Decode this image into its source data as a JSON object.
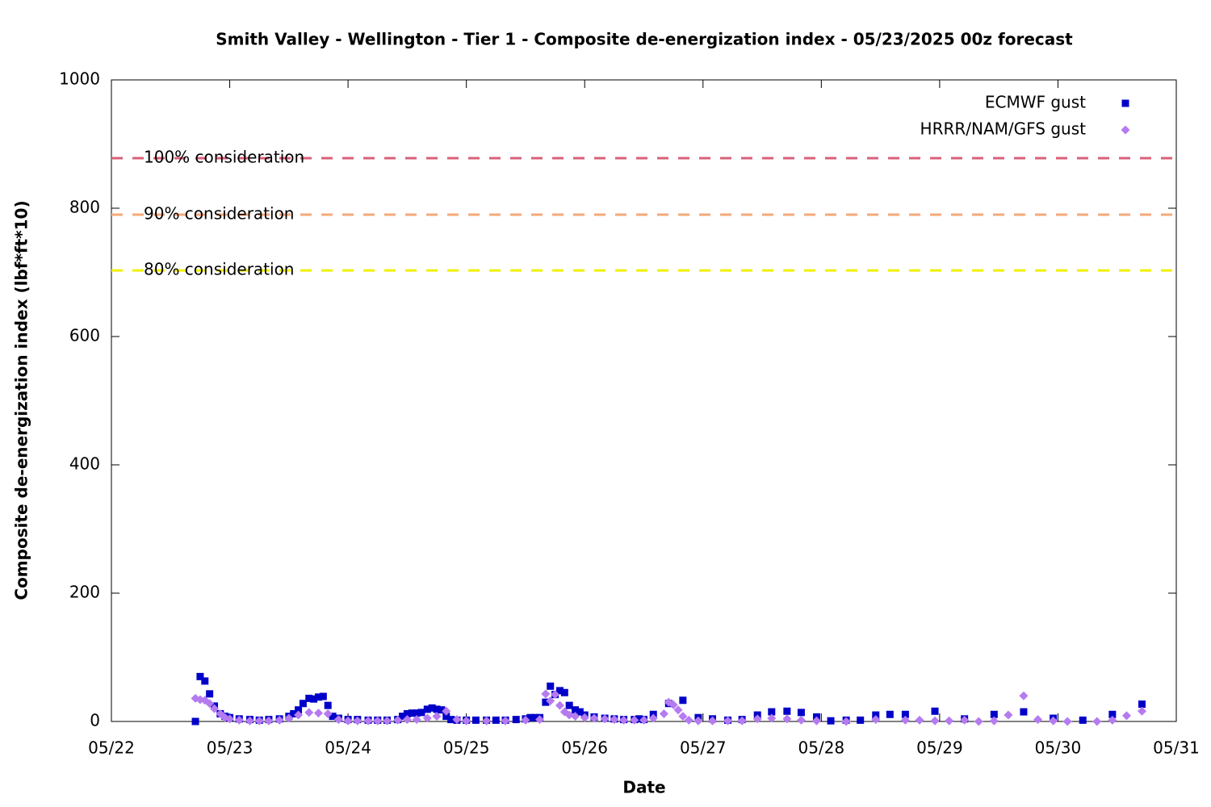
{
  "chart_data": {
    "type": "scatter",
    "title": "Smith Valley - Wellington - Tier 1 - Composite de-energization index - 05/23/2025 00z forecast",
    "x_label": "Date",
    "y_label": "Composite de-energization index (lbf*ft*10)",
    "xlim": [
      22,
      31
    ],
    "xticks": [
      {
        "value": 22,
        "label": "05/22"
      },
      {
        "value": 23,
        "label": "05/23"
      },
      {
        "value": 24,
        "label": "05/24"
      },
      {
        "value": 25,
        "label": "05/25"
      },
      {
        "value": 26,
        "label": "05/26"
      },
      {
        "value": 27,
        "label": "05/27"
      },
      {
        "value": 28,
        "label": "05/28"
      },
      {
        "value": 29,
        "label": "05/29"
      },
      {
        "value": 30,
        "label": "05/30"
      },
      {
        "value": 31,
        "label": "05/31"
      }
    ],
    "ylim": [
      0,
      1000
    ],
    "yticks": [
      0,
      200,
      400,
      600,
      800,
      1000
    ],
    "legend": "top-right",
    "thresholds": [
      {
        "label": "100% consideration",
        "value": 878,
        "color": "#d9607a"
      },
      {
        "label": "90% consideration",
        "value": 790,
        "color": "#f4a97a"
      },
      {
        "label": "80% consideration",
        "value": 703,
        "color": "#f0f000"
      }
    ],
    "series": [
      {
        "name": "ECMWF gust",
        "color": "#0000c8",
        "marker": "square",
        "x": [
          22.71,
          22.75,
          22.79,
          22.83,
          22.87,
          22.92,
          22.96,
          23.0,
          23.08,
          23.17,
          23.25,
          23.33,
          23.42,
          23.5,
          23.54,
          23.58,
          23.62,
          23.67,
          23.71,
          23.75,
          23.79,
          23.83,
          23.87,
          23.92,
          24.0,
          24.08,
          24.17,
          24.25,
          24.33,
          24.42,
          24.46,
          24.5,
          24.54,
          24.58,
          24.62,
          24.67,
          24.71,
          24.75,
          24.79,
          24.83,
          24.87,
          24.92,
          25.0,
          25.08,
          25.17,
          25.25,
          25.33,
          25.42,
          25.5,
          25.54,
          25.58,
          25.62,
          25.67,
          25.71,
          25.75,
          25.79,
          25.83,
          25.87,
          25.92,
          25.96,
          26.0,
          26.08,
          26.17,
          26.25,
          26.33,
          26.42,
          26.46,
          26.5,
          26.58,
          26.71,
          26.83,
          26.96,
          27.08,
          27.21,
          27.33,
          27.46,
          27.58,
          27.71,
          27.83,
          27.96,
          28.08,
          28.21,
          28.33,
          28.46,
          28.58,
          28.71,
          28.96,
          29.21,
          29.46,
          29.71,
          29.96,
          30.21,
          30.46,
          30.71
        ],
        "values": [
          0,
          70,
          63,
          43,
          24,
          12,
          8,
          6,
          4,
          3,
          2,
          3,
          4,
          8,
          12,
          18,
          28,
          36,
          35,
          38,
          39,
          25,
          8,
          5,
          3,
          3,
          2,
          2,
          2,
          3,
          8,
          12,
          13,
          13,
          14,
          19,
          21,
          19,
          18,
          8,
          3,
          2,
          2,
          2,
          2,
          2,
          2,
          3,
          4,
          6,
          6,
          6,
          30,
          55,
          42,
          48,
          45,
          25,
          18,
          15,
          10,
          7,
          5,
          4,
          3,
          3,
          4,
          3,
          11,
          28,
          33,
          6,
          4,
          2,
          3,
          10,
          15,
          16,
          14,
          7,
          1,
          2,
          2,
          10,
          11,
          11,
          16,
          4,
          11,
          15,
          5,
          2,
          11,
          27
        ]
      },
      {
        "name": "HRRR/NAM/GFS gust",
        "color": "#b57bf0",
        "marker": "diamond",
        "x": [
          22.71,
          22.75,
          22.79,
          22.83,
          22.87,
          22.92,
          22.96,
          23.0,
          23.08,
          23.17,
          23.25,
          23.33,
          23.42,
          23.5,
          23.58,
          23.67,
          23.75,
          23.83,
          23.92,
          24.0,
          24.08,
          24.17,
          24.25,
          24.33,
          24.42,
          24.5,
          24.58,
          24.67,
          24.75,
          24.83,
          24.92,
          25.0,
          25.17,
          25.33,
          25.5,
          25.62,
          25.67,
          25.71,
          25.75,
          25.79,
          25.83,
          25.87,
          25.92,
          26.0,
          26.08,
          26.17,
          26.25,
          26.33,
          26.42,
          26.5,
          26.58,
          26.67,
          26.71,
          26.75,
          26.79,
          26.83,
          26.88,
          26.96,
          27.08,
          27.21,
          27.33,
          27.46,
          27.58,
          27.71,
          27.83,
          27.96,
          28.21,
          28.46,
          28.71,
          28.83,
          28.96,
          29.08,
          29.21,
          29.33,
          29.46,
          29.58,
          29.71,
          29.83,
          29.96,
          30.08,
          30.33,
          30.46,
          30.58,
          30.71
        ],
        "values": [
          36,
          34,
          33,
          28,
          20,
          12,
          6,
          4,
          2,
          1,
          1,
          1,
          2,
          5,
          10,
          14,
          13,
          12,
          3,
          1,
          1,
          1,
          1,
          1,
          2,
          3,
          3,
          5,
          8,
          16,
          3,
          1,
          1,
          1,
          2,
          3,
          43,
          32,
          42,
          25,
          15,
          10,
          8,
          6,
          5,
          4,
          3,
          2,
          2,
          2,
          5,
          12,
          30,
          26,
          18,
          8,
          2,
          1,
          1,
          1,
          1,
          4,
          5,
          4,
          2,
          1,
          0,
          3,
          2,
          2,
          1,
          1,
          2,
          0,
          1,
          10,
          40,
          3,
          1,
          0,
          0,
          2,
          9,
          16
        ]
      }
    ]
  }
}
